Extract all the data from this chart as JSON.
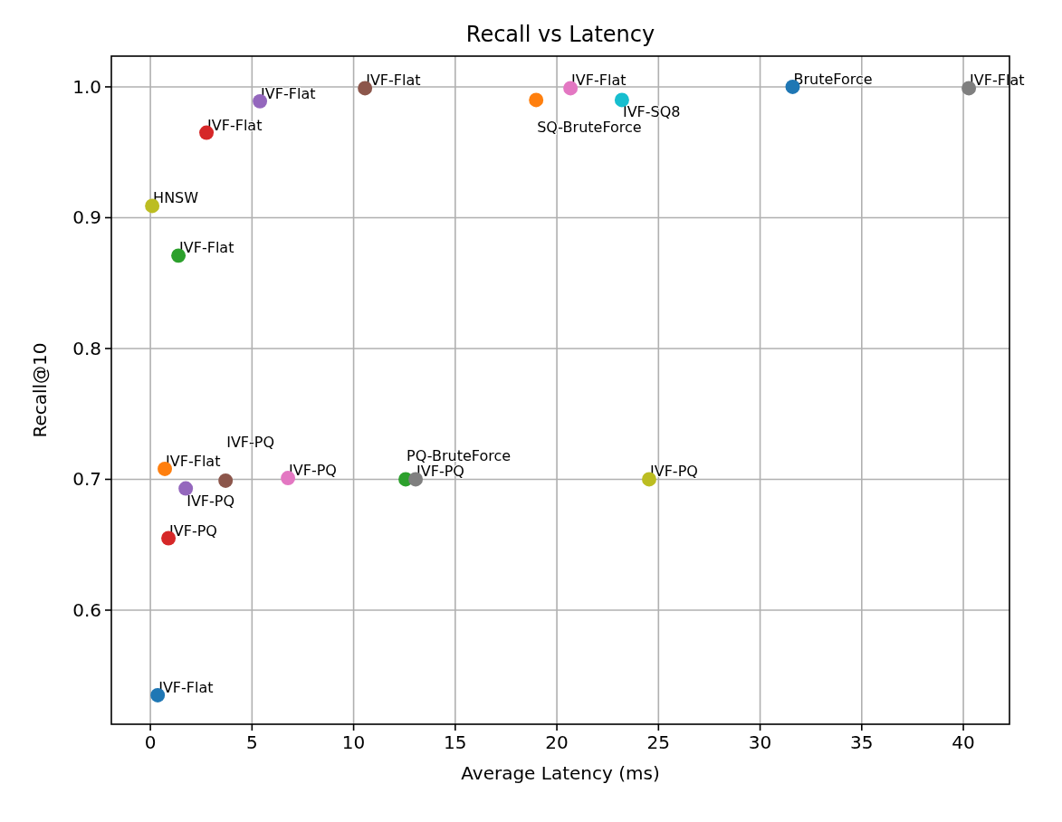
{
  "chart_data": {
    "type": "scatter",
    "title": "Recall vs Latency",
    "xlabel": "Average Latency (ms)",
    "ylabel": "Recall@10",
    "x": [
      0.36,
      0.71,
      1.38,
      2.76,
      5.39,
      10.56,
      20.67,
      40.27,
      0.09,
      23.2,
      31.6,
      18.98,
      12.56,
      13.05,
      0.89,
      1.74,
      3.7,
      6.77,
      24.54
    ],
    "values": [
      0.535,
      0.708,
      0.871,
      0.965,
      0.989,
      0.999,
      0.999,
      0.999,
      0.909,
      0.99,
      1.0,
      0.99,
      0.7,
      0.7,
      0.655,
      0.693,
      0.699,
      0.701,
      0.7
    ],
    "colors": [
      "#1f77b4",
      "#ff7f0e",
      "#2ca02c",
      "#d62728",
      "#9467bd",
      "#8c564b",
      "#e377c2",
      "#7f7f7f",
      "#bcbd22",
      "#17becf",
      "#1f77b4",
      "#ff7f0e",
      "#2ca02c",
      "#7f7f7f",
      "#d62728",
      "#9467bd",
      "#8c564b",
      "#e377c2",
      "#bcbd22"
    ],
    "annotations": [
      {
        "text": "IVF-Flat",
        "x": 0.36,
        "y": 0.535
      },
      {
        "text": "IVF-Flat",
        "x": 0.71,
        "y": 0.708
      },
      {
        "text": "IVF-Flat",
        "x": 1.38,
        "y": 0.871
      },
      {
        "text": "IVF-Flat",
        "x": 2.76,
        "y": 0.965
      },
      {
        "text": "IVF-Flat",
        "x": 5.39,
        "y": 0.989
      },
      {
        "text": "IVF-Flat",
        "x": 10.56,
        "y": 0.999
      },
      {
        "text": "IVF-Flat",
        "x": 20.67,
        "y": 0.999
      },
      {
        "text": "IVF-Flat",
        "x": 40.27,
        "y": 0.999
      },
      {
        "text": "HNSW",
        "x": 0.09,
        "y": 0.909
      },
      {
        "text": "IVF-SQ8",
        "x": 23.2,
        "y": 0.99
      },
      {
        "text": "BruteForce",
        "x": 31.6,
        "y": 1.0
      },
      {
        "text": "SQ-BruteForce",
        "x": 18.98,
        "y": 0.99
      },
      {
        "text": "PQ-BruteForce",
        "x": 12.56,
        "y": 0.7
      },
      {
        "text": "IVF-PQ",
        "x": 13.05,
        "y": 0.7
      },
      {
        "text": "IVF-PQ",
        "x": 0.89,
        "y": 0.655
      },
      {
        "text": "IVF-PQ",
        "x": 1.74,
        "y": 0.693
      },
      {
        "text": "IVF-PQ",
        "x": 3.7,
        "y": 0.699
      },
      {
        "text": "IVF-PQ",
        "x": 6.77,
        "y": 0.701
      },
      {
        "text": "IVF-PQ",
        "x": 24.54,
        "y": 0.7
      }
    ],
    "xlim": [
      -1.92,
      42.27
    ],
    "ylim": [
      0.5128,
      1.0235
    ],
    "xticks": [
      0,
      5,
      10,
      15,
      20,
      25,
      30,
      35,
      40
    ],
    "yticks": [
      0.6,
      0.7,
      0.8,
      0.9,
      {
        "value": 1,
        "label": "1.0"
      }
    ],
    "grid": true,
    "marker": "circle"
  }
}
